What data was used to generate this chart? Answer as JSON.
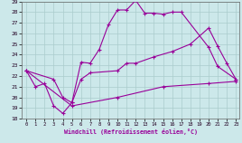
{
  "bg_color": "#cce8ea",
  "line_color": "#990099",
  "grid_color": "#aacccc",
  "xlabel": "Windchill (Refroidissement éolien,°C)",
  "xlim_min": -0.5,
  "xlim_max": 23.4,
  "ylim_min": 18,
  "ylim_max": 29,
  "xticks": [
    0,
    1,
    2,
    3,
    4,
    5,
    6,
    7,
    8,
    9,
    10,
    11,
    12,
    13,
    14,
    15,
    16,
    17,
    18,
    19,
    20,
    21,
    22,
    23
  ],
  "yticks": [
    18,
    19,
    20,
    21,
    22,
    23,
    24,
    25,
    26,
    27,
    28,
    29
  ],
  "line1_x": [
    0,
    1,
    2,
    3,
    4,
    5,
    6,
    7,
    8,
    9,
    10,
    11,
    12,
    13,
    14,
    15,
    16,
    17,
    20,
    21,
    23
  ],
  "line1_y": [
    22.5,
    21.0,
    21.3,
    19.2,
    18.5,
    19.5,
    23.3,
    23.2,
    24.5,
    26.8,
    28.2,
    28.2,
    29.1,
    27.9,
    27.9,
    27.8,
    28.0,
    28.0,
    24.7,
    22.9,
    21.7
  ],
  "line2_x": [
    0,
    3,
    4,
    5,
    6,
    7,
    10,
    11,
    12,
    14,
    16,
    18,
    20,
    21,
    22,
    23
  ],
  "line2_y": [
    22.5,
    21.7,
    20.0,
    19.5,
    21.7,
    22.3,
    22.5,
    23.2,
    23.2,
    23.8,
    24.3,
    25.0,
    26.5,
    24.8,
    23.2,
    21.7
  ],
  "line3_x": [
    0,
    5,
    10,
    15,
    20,
    23
  ],
  "line3_y": [
    22.5,
    19.2,
    20.0,
    21.0,
    21.3,
    21.5
  ]
}
